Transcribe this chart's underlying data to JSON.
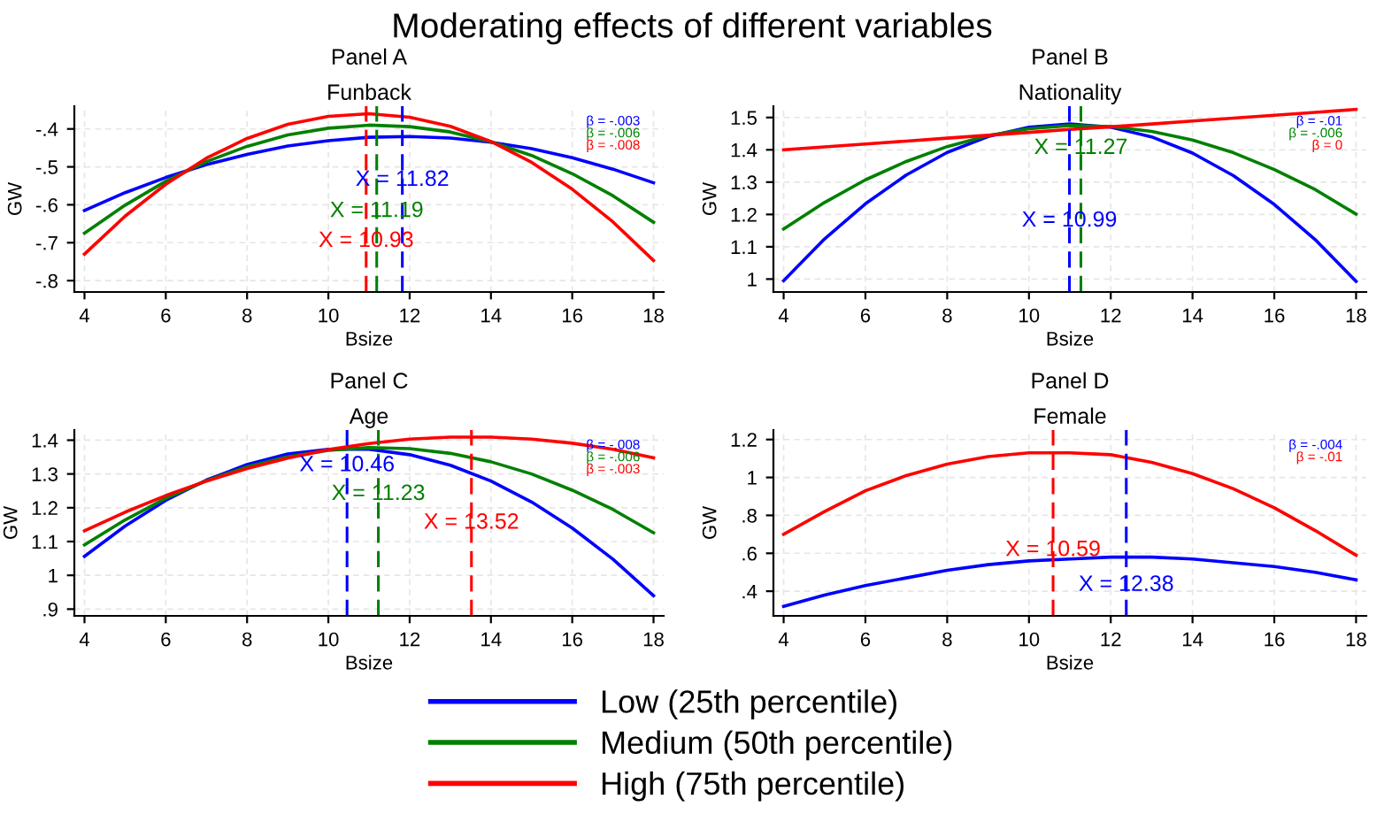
{
  "chart_data": [
    {
      "type": "line",
      "title": "Panel A",
      "subtitle": "Funback",
      "xlabel": "Bsize",
      "ylabel": "GW",
      "legend": "bottom",
      "grid": true,
      "line_style": "solid",
      "marker": "none",
      "x": [
        4,
        5,
        6,
        7,
        8,
        9,
        10,
        11,
        12,
        13,
        14,
        15,
        16,
        17,
        18
      ],
      "series": [
        {
          "name": "Low (25th percentile)",
          "color": "#0000ff",
          "values": [
            -0.615,
            -0.568,
            -0.528,
            -0.494,
            -0.467,
            -0.445,
            -0.431,
            -0.422,
            -0.42,
            -0.424,
            -0.435,
            -0.452,
            -0.476,
            -0.506,
            -0.542
          ]
        },
        {
          "name": "Medium (50th percentile)",
          "color": "#008000",
          "values": [
            -0.675,
            -0.601,
            -0.538,
            -0.486,
            -0.446,
            -0.416,
            -0.398,
            -0.39,
            -0.394,
            -0.408,
            -0.434,
            -0.47,
            -0.518,
            -0.576,
            -0.646
          ]
        },
        {
          "name": "High (75th percentile)",
          "color": "#ff0000",
          "values": [
            -0.73,
            -0.63,
            -0.546,
            -0.477,
            -0.425,
            -0.388,
            -0.367,
            -0.36,
            -0.369,
            -0.393,
            -0.433,
            -0.488,
            -0.559,
            -0.645,
            -0.747
          ]
        }
      ],
      "xlim": [
        3.75,
        18.25
      ],
      "xticks": [
        4,
        6,
        8,
        10,
        12,
        14,
        16,
        18
      ],
      "ylim": [
        -0.83,
        -0.34
      ],
      "yticks": [
        {
          "value": -0.8,
          "label": "-.8"
        },
        {
          "value": -0.7,
          "label": "-.7"
        },
        {
          "value": -0.6,
          "label": "-.6"
        },
        {
          "value": -0.5,
          "label": "-.5"
        },
        {
          "value": -0.4,
          "label": "-.4"
        }
      ],
      "ref_lines": [
        {
          "axis": "x",
          "value": 11.82,
          "color": "#0000ff",
          "line_style": "dashed"
        },
        {
          "axis": "x",
          "value": 11.19,
          "color": "#008000",
          "line_style": "dashed"
        },
        {
          "axis": "x",
          "value": 10.93,
          "color": "#ff0000",
          "line_style": "dashed"
        }
      ],
      "annotations": [
        "β = -.003",
        "β = -.006",
        "β = -.008",
        "Moderating effects of different variables",
        {
          "text": "X = 11.82",
          "x": 11.82,
          "y": -0.535
        },
        {
          "text": "X = 11.19",
          "x": 11.19,
          "y": -0.617
        },
        {
          "text": "X = 10.93",
          "x": 10.93,
          "y": -0.696
        }
      ]
    },
    {
      "type": "line",
      "title": "Panel B",
      "subtitle": "Nationality",
      "xlabel": "Bsize",
      "ylabel": "GW",
      "grid": true,
      "line_style": "solid",
      "marker": "none",
      "x": [
        4,
        5,
        6,
        7,
        8,
        9,
        10,
        11,
        12,
        13,
        14,
        15,
        16,
        17,
        18
      ],
      "series": [
        {
          "color": "#0000ff",
          "values": [
            0.995,
            1.124,
            1.233,
            1.322,
            1.392,
            1.441,
            1.47,
            1.48,
            1.47,
            1.44,
            1.39,
            1.32,
            1.231,
            1.122,
            0.993
          ]
        },
        {
          "color": "#008000",
          "values": [
            1.155,
            1.237,
            1.307,
            1.364,
            1.41,
            1.444,
            1.465,
            1.475,
            1.472,
            1.457,
            1.43,
            1.391,
            1.339,
            1.277,
            1.201
          ]
        },
        {
          "color": "#ff0000",
          "values": [
            1.4,
            1.409,
            1.418,
            1.427,
            1.436,
            1.445,
            1.454,
            1.463,
            1.471,
            1.48,
            1.489,
            1.498,
            1.507,
            1.516,
            1.525
          ]
        }
      ],
      "xlim": [
        3.75,
        18.25
      ],
      "xticks": [
        4,
        6,
        8,
        10,
        12,
        14,
        16,
        18
      ],
      "ylim": [
        0.96,
        1.535
      ],
      "yticks": [
        1,
        1.1,
        1.2,
        1.3,
        1.4,
        1.5
      ],
      "ref_lines": [
        {
          "axis": "x",
          "value": 10.99,
          "color": "#0000ff",
          "line_style": "dashed"
        },
        {
          "axis": "x",
          "value": 11.27,
          "color": "#008000",
          "line_style": "dashed"
        }
      ],
      "annotations": [
        "β = -.01",
        "β = -.006",
        "β = 0",
        {
          "text": "X = 10.99",
          "x": 10.99,
          "y": 1.18
        },
        {
          "text": "X = 11.27",
          "x": 11.27,
          "y": 1.405
        }
      ]
    },
    {
      "type": "line",
      "title": "Panel C",
      "subtitle": "Age",
      "xlabel": "Bsize",
      "ylabel": "GW",
      "grid": true,
      "line_style": "solid",
      "marker": "none",
      "x": [
        4,
        5,
        6,
        7,
        8,
        9,
        10,
        11,
        12,
        13,
        14,
        15,
        16,
        17,
        18
      ],
      "series": [
        {
          "color": "#0000ff",
          "values": [
            1.056,
            1.146,
            1.222,
            1.282,
            1.328,
            1.359,
            1.373,
            1.373,
            1.357,
            1.326,
            1.279,
            1.217,
            1.14,
            1.048,
            0.94
          ]
        },
        {
          "color": "#008000",
          "values": [
            1.09,
            1.164,
            1.228,
            1.28,
            1.321,
            1.351,
            1.37,
            1.378,
            1.375,
            1.361,
            1.336,
            1.3,
            1.252,
            1.195,
            1.126
          ]
        },
        {
          "color": "#ff0000",
          "values": [
            1.132,
            1.187,
            1.236,
            1.279,
            1.316,
            1.347,
            1.372,
            1.39,
            1.403,
            1.409,
            1.409,
            1.403,
            1.391,
            1.373,
            1.348
          ]
        }
      ],
      "xlim": [
        3.75,
        18.25
      ],
      "xticks": [
        4,
        6,
        8,
        10,
        12,
        14,
        16,
        18
      ],
      "ylim": [
        0.88,
        1.43
      ],
      "yticks": [
        {
          "value": 0.9,
          "label": ".9"
        },
        1,
        1.1,
        1.2,
        1.3,
        1.4
      ],
      "ref_lines": [
        {
          "axis": "x",
          "value": 10.46,
          "color": "#0000ff",
          "line_style": "dashed"
        },
        {
          "axis": "x",
          "value": 11.23,
          "color": "#008000",
          "line_style": "dashed"
        },
        {
          "axis": "x",
          "value": 13.52,
          "color": "#ff0000",
          "line_style": "dashed"
        }
      ],
      "annotations": [
        "β = -.008",
        "β = -.006",
        "β = -.003",
        {
          "text": "X = 10.46",
          "x": 10.46,
          "y": 1.325
        },
        {
          "text": "X = 11.23",
          "x": 11.23,
          "y": 1.24
        },
        {
          "text": "X = 13.52",
          "x": 13.52,
          "y": 1.155
        }
      ]
    },
    {
      "type": "line",
      "title": "Panel D",
      "subtitle": "Female",
      "xlabel": "Bsize",
      "ylabel": "GW",
      "grid": true,
      "line_style": "solid",
      "marker": "none",
      "x": [
        4,
        5,
        6,
        7,
        8,
        9,
        10,
        11,
        12,
        13,
        14,
        15,
        16,
        17,
        18
      ],
      "series": [
        {
          "color": "#0000ff",
          "values": [
            0.32,
            0.38,
            0.43,
            0.47,
            0.51,
            0.54,
            0.56,
            0.57,
            0.58,
            0.58,
            0.57,
            0.55,
            0.53,
            0.5,
            0.46
          ]
        },
        {
          "color": "#ff0000",
          "values": [
            0.7,
            0.82,
            0.93,
            1.01,
            1.07,
            1.11,
            1.13,
            1.13,
            1.12,
            1.08,
            1.02,
            0.94,
            0.84,
            0.72,
            0.59
          ]
        }
      ],
      "xlim": [
        3.75,
        18.25
      ],
      "xticks": [
        4,
        6,
        8,
        10,
        12,
        14,
        16,
        18
      ],
      "ylim": [
        0.27,
        1.25
      ],
      "yticks": [
        {
          "value": 0.4,
          "label": ".4"
        },
        {
          "value": 0.6,
          "label": ".6"
        },
        {
          "value": 0.8,
          "label": ".8"
        },
        1,
        1.2
      ],
      "ref_lines": [
        {
          "axis": "x",
          "value": 12.38,
          "color": "#0000ff",
          "line_style": "dashed"
        },
        {
          "axis": "x",
          "value": 10.59,
          "color": "#ff0000",
          "line_style": "dashed"
        }
      ],
      "annotations": [
        "β = -.004",
        "β = -.01",
        {
          "text": "X = 12.38",
          "x": 12.38,
          "y": 0.432
        },
        {
          "text": "X = 10.59",
          "x": 10.59,
          "y": 0.616
        }
      ]
    }
  ]
}
